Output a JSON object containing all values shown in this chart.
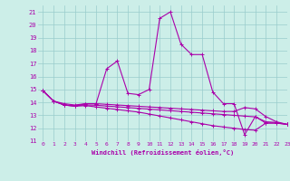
{
  "xlabel": "Windchill (Refroidissement éolien,°C)",
  "background_color": "#cceee8",
  "line_color": "#aa00aa",
  "grid_color": "#99cccc",
  "series": [
    {
      "x": [
        0,
        1,
        2,
        3,
        4,
        5,
        6,
        7,
        8,
        9,
        10,
        11,
        12,
        13,
        14,
        15,
        16,
        17,
        18,
        19,
        20,
        21,
        22,
        23
      ],
      "y": [
        14.9,
        14.1,
        13.8,
        13.7,
        13.9,
        13.9,
        16.6,
        17.2,
        14.7,
        14.6,
        15.0,
        20.5,
        21.0,
        18.5,
        17.7,
        17.7,
        14.8,
        13.9,
        13.9,
        11.5,
        12.9,
        12.4,
        12.4,
        12.3
      ]
    },
    {
      "x": [
        0,
        1,
        2,
        3,
        4,
        5,
        6,
        7,
        8,
        9,
        10,
        11,
        12,
        13,
        14,
        15,
        16,
        17,
        18,
        19,
        20,
        21,
        22,
        23
      ],
      "y": [
        14.9,
        14.1,
        13.9,
        13.8,
        13.9,
        13.9,
        13.85,
        13.8,
        13.75,
        13.7,
        13.65,
        13.6,
        13.55,
        13.5,
        13.45,
        13.4,
        13.35,
        13.3,
        13.3,
        13.6,
        13.5,
        12.9,
        12.5,
        12.3
      ]
    },
    {
      "x": [
        0,
        1,
        2,
        3,
        4,
        5,
        6,
        7,
        8,
        9,
        10,
        11,
        12,
        13,
        14,
        15,
        16,
        17,
        18,
        19,
        20,
        21,
        22,
        23
      ],
      "y": [
        14.9,
        14.1,
        13.8,
        13.75,
        13.8,
        13.78,
        13.72,
        13.66,
        13.6,
        13.54,
        13.48,
        13.42,
        13.36,
        13.3,
        13.24,
        13.18,
        13.12,
        13.06,
        13.0,
        12.94,
        12.88,
        12.5,
        12.45,
        12.3
      ]
    },
    {
      "x": [
        0,
        1,
        2,
        3,
        4,
        5,
        6,
        7,
        8,
        9,
        10,
        11,
        12,
        13,
        14,
        15,
        16,
        17,
        18,
        19,
        20,
        21,
        22,
        23
      ],
      "y": [
        14.9,
        14.1,
        13.8,
        13.7,
        13.75,
        13.65,
        13.55,
        13.45,
        13.35,
        13.25,
        13.1,
        12.95,
        12.8,
        12.65,
        12.5,
        12.35,
        12.2,
        12.1,
        12.0,
        11.9,
        11.85,
        12.4,
        12.4,
        12.3
      ]
    }
  ],
  "ylim": [
    11,
    21.5
  ],
  "xlim": [
    -0.5,
    23
  ],
  "yticks": [
    11,
    12,
    13,
    14,
    15,
    16,
    17,
    18,
    19,
    20,
    21
  ],
  "xticks": [
    0,
    1,
    2,
    3,
    4,
    5,
    6,
    7,
    8,
    9,
    10,
    11,
    12,
    13,
    14,
    15,
    16,
    17,
    18,
    19,
    20,
    21,
    22,
    23
  ]
}
